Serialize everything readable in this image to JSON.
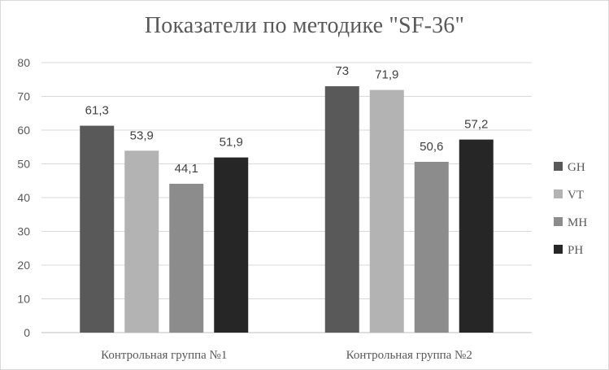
{
  "chart_data": {
    "type": "bar",
    "title": "Показатели  по методике \"SF-36\"",
    "xlabel": "",
    "ylabel": "",
    "ylim": [
      0,
      80
    ],
    "yticks": [
      0,
      10,
      20,
      30,
      40,
      50,
      60,
      70,
      80
    ],
    "grid": true,
    "legend_position": "right",
    "categories": [
      "Контрольная группа №1",
      "Контрольная группа №2"
    ],
    "series": [
      {
        "name": "GH",
        "values": [
          61.3,
          73
        ],
        "labels": [
          "61,3",
          "73"
        ],
        "color": "#595959"
      },
      {
        "name": "VT",
        "values": [
          53.9,
          71.9
        ],
        "labels": [
          "53,9",
          "71,9"
        ],
        "color": "#b3b3b3"
      },
      {
        "name": "MH",
        "values": [
          44.1,
          50.6
        ],
        "labels": [
          "44,1",
          "50,6"
        ],
        "color": "#8c8c8c"
      },
      {
        "name": "PH",
        "values": [
          51.9,
          57.2
        ],
        "labels": [
          "51,9",
          "57,2"
        ],
        "color": "#262626"
      }
    ]
  }
}
